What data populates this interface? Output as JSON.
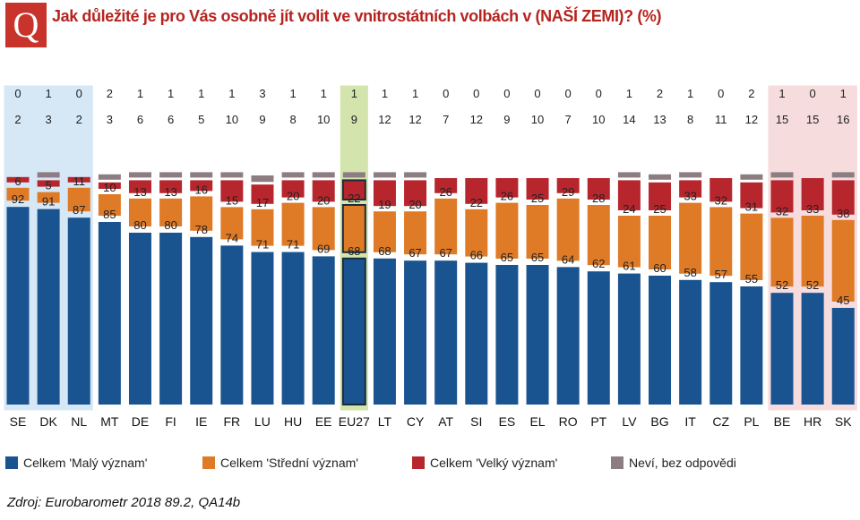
{
  "header": {
    "badge": "Q",
    "title": "Jak důležité je pro Vás osobně jít volit ve vnitrostátních volbách v (NAŠÍ ZEMI)? (%)"
  },
  "chart_data": {
    "type": "bar",
    "stacked": true,
    "title": "Jak důležité je pro Vás osobně jít volit ve vnitrostátních volbách v (NAŠÍ ZEMI)? (%)",
    "categories": [
      "SE",
      "DK",
      "NL",
      "MT",
      "DE",
      "FI",
      "IE",
      "FR",
      "LU",
      "HU",
      "EE",
      "EU27",
      "LT",
      "CY",
      "AT",
      "SI",
      "ES",
      "EL",
      "RO",
      "PT",
      "LV",
      "BG",
      "IT",
      "CZ",
      "PL",
      "BE",
      "HR",
      "SK"
    ],
    "ylim": [
      0,
      100
    ],
    "series": [
      {
        "key": "mal",
        "name": "Celkem 'Malý význam'",
        "color": "#1a5490",
        "values": [
          92,
          91,
          87,
          85,
          80,
          80,
          78,
          74,
          71,
          71,
          69,
          68,
          68,
          67,
          67,
          66,
          65,
          65,
          64,
          62,
          61,
          60,
          58,
          57,
          55,
          52,
          52,
          45
        ]
      },
      {
        "key": "str",
        "name": "Celkem 'Střední význam'",
        "color": "#df7a26",
        "values": [
          6,
          5,
          11,
          10,
          13,
          13,
          16,
          15,
          17,
          20,
          20,
          22,
          19,
          20,
          26,
          22,
          26,
          25,
          29,
          28,
          24,
          25,
          33,
          32,
          31,
          32,
          33,
          38
        ]
      },
      {
        "key": "vel",
        "name": "Celkem 'Velký význam'",
        "color": "#b7262d",
        "values": [
          2,
          3,
          2,
          3,
          6,
          6,
          5,
          10,
          9,
          8,
          10,
          9,
          12,
          12,
          7,
          12,
          9,
          10,
          7,
          10,
          14,
          13,
          8,
          11,
          12,
          15,
          15,
          16
        ]
      },
      {
        "key": "nev",
        "name": "Neví, bez odpovědi",
        "color": "#8c7d82",
        "values": [
          0,
          1,
          0,
          2,
          1,
          1,
          1,
          1,
          3,
          1,
          1,
          1,
          1,
          1,
          0,
          0,
          0,
          0,
          0,
          0,
          1,
          2,
          1,
          0,
          2,
          1,
          0,
          1
        ]
      }
    ],
    "groups": [
      {
        "name": "low",
        "categories": [
          "SE",
          "DK",
          "NL"
        ],
        "color": "#d6e8f6"
      },
      {
        "name": "average",
        "categories": [
          "EU27"
        ],
        "color": "#d3e5ad"
      },
      {
        "name": "high",
        "categories": [
          "BE",
          "HR",
          "SK"
        ],
        "color": "#f7dcdd"
      }
    ],
    "highlight": "EU27"
  },
  "legend": {
    "items": [
      {
        "label": "Celkem 'Malý význam'",
        "color": "#1a5490"
      },
      {
        "label": "Celkem 'Střední význam'",
        "color": "#df7a26"
      },
      {
        "label": "Celkem 'Velký význam'",
        "color": "#b7262d"
      },
      {
        "label": "Neví, bez odpovědi",
        "color": "#8c7d82"
      }
    ]
  },
  "footer": {
    "source": "Zdroj: Eurobarometr 2018 89.2, QA14b"
  }
}
